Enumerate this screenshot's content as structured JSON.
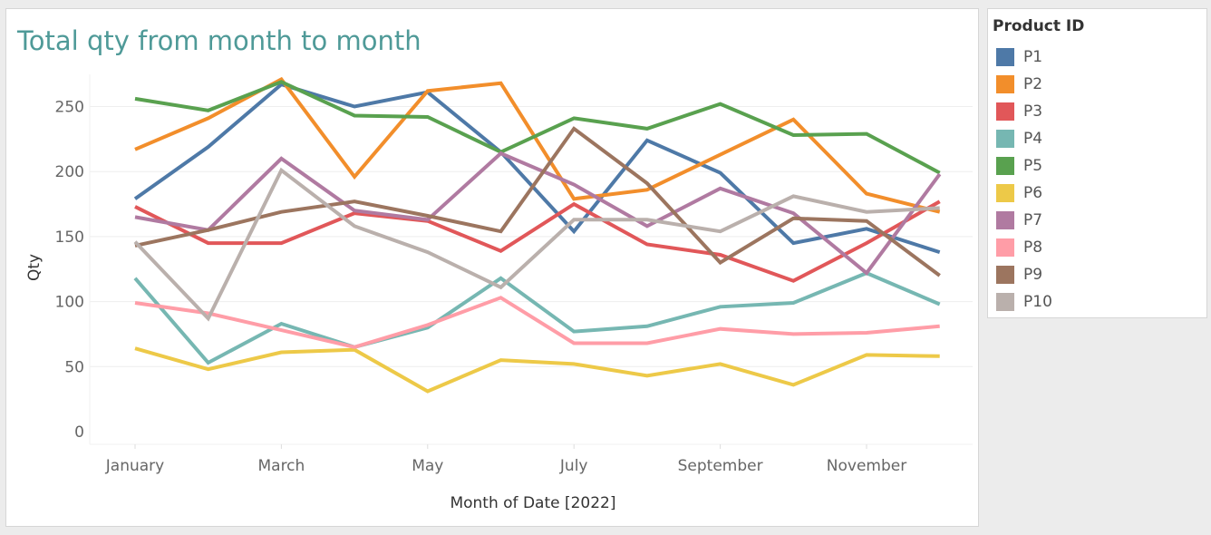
{
  "chart_data": {
    "type": "line",
    "title": "Total qty from month to month",
    "xlabel": "Month of Date [2022]",
    "ylabel": "Qty",
    "x": [
      1,
      2,
      3,
      4,
      5,
      6,
      7,
      8,
      9,
      10,
      11,
      12
    ],
    "x_tick_labels": [
      "January",
      "March",
      "May",
      "July",
      "September",
      "November"
    ],
    "x_tick_positions": [
      1,
      3,
      5,
      7,
      9,
      11
    ],
    "y_ticks": [
      0,
      50,
      100,
      150,
      200,
      250
    ],
    "ylim": [
      0,
      285
    ],
    "grid": "horizontal",
    "legend_title": "Product ID",
    "legend_position": "right",
    "series": [
      {
        "name": "P1",
        "color": "#4e79a7",
        "values": [
          179,
          219,
          267,
          250,
          261,
          215,
          154,
          224,
          199,
          145,
          156,
          138
        ]
      },
      {
        "name": "P2",
        "color": "#f28e2b",
        "values": [
          217,
          241,
          271,
          196,
          262,
          268,
          179,
          186,
          213,
          240,
          183,
          169
        ]
      },
      {
        "name": "P3",
        "color": "#e15759",
        "values": [
          173,
          145,
          145,
          168,
          162,
          139,
          175,
          144,
          136,
          116,
          145,
          177
        ]
      },
      {
        "name": "P4",
        "color": "#76b7b2",
        "values": [
          118,
          53,
          83,
          65,
          80,
          118,
          77,
          81,
          96,
          99,
          122,
          98
        ]
      },
      {
        "name": "P5",
        "color": "#59a14f",
        "values": [
          256,
          247,
          269,
          243,
          242,
          215,
          241,
          233,
          252,
          228,
          229,
          199
        ]
      },
      {
        "name": "P6",
        "color": "#edc948",
        "values": [
          64,
          48,
          61,
          63,
          31,
          55,
          52,
          43,
          52,
          36,
          59,
          58
        ]
      },
      {
        "name": "P7",
        "color": "#b07aa1",
        "values": [
          165,
          155,
          210,
          170,
          163,
          214,
          190,
          158,
          187,
          168,
          122,
          198
        ]
      },
      {
        "name": "P8",
        "color": "#ff9da7",
        "values": [
          99,
          91,
          78,
          65,
          82,
          103,
          68,
          68,
          79,
          75,
          76,
          81
        ]
      },
      {
        "name": "P9",
        "color": "#9c755f",
        "values": [
          143,
          155,
          169,
          177,
          166,
          154,
          233,
          191,
          130,
          164,
          162,
          120
        ]
      },
      {
        "name": "P10",
        "color": "#bab0ac",
        "values": [
          146,
          87,
          201,
          158,
          138,
          111,
          163,
          163,
          154,
          181,
          169,
          172
        ]
      }
    ]
  }
}
